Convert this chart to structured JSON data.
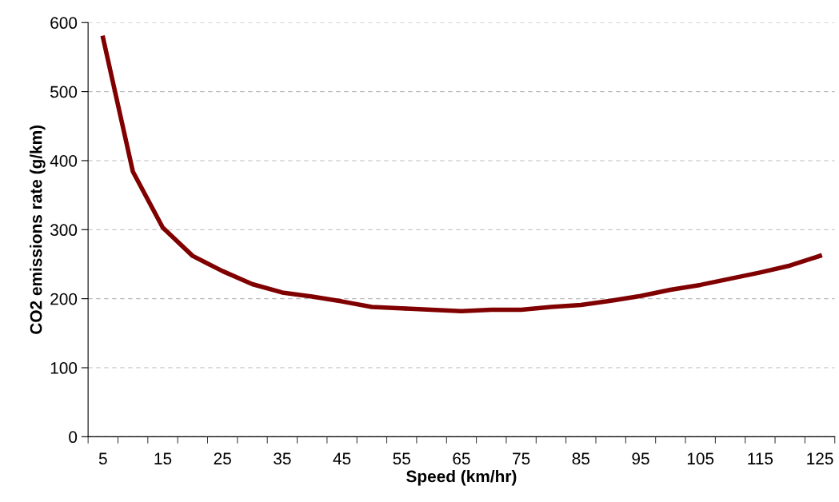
{
  "chart_data": {
    "type": "line",
    "xlabel": "Speed (km/hr)",
    "ylabel": "CO2 emissions rate (g/km)",
    "categories": [
      "5",
      null,
      "15",
      null,
      "25",
      null,
      "35",
      null,
      "45",
      null,
      "55",
      null,
      "65",
      null,
      "75",
      null,
      "85",
      null,
      "95",
      null,
      "105",
      null,
      "115",
      null,
      "125"
    ],
    "series": [
      {
        "color": "#800000",
        "values": [
          578,
          384,
          303,
          262,
          240,
          221,
          209,
          203,
          196,
          188,
          186,
          184,
          182,
          184,
          184,
          188,
          191,
          197,
          204,
          213,
          220,
          229,
          238,
          248,
          262
        ]
      }
    ],
    "ylim": [
      0,
      600
    ],
    "yticks": [
      0,
      100,
      200,
      300,
      400,
      500,
      600
    ],
    "grid": "y",
    "legend": false,
    "marker": "none",
    "line_style": "solid"
  }
}
